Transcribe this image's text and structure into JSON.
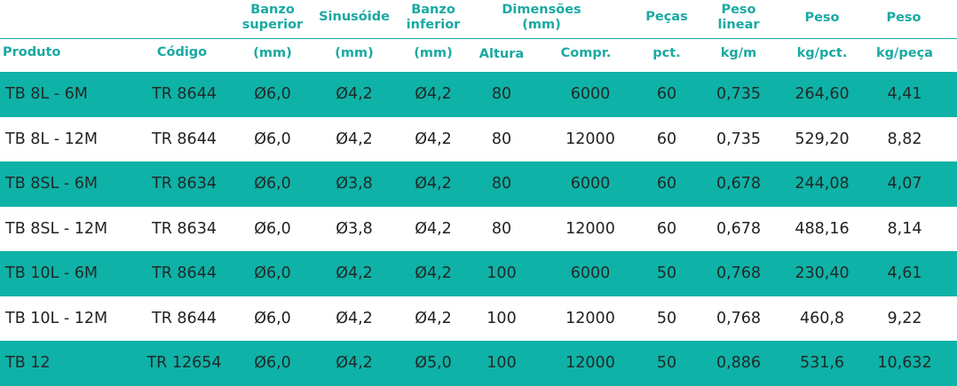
{
  "headers": {
    "banzo_superior": [
      "Banzo",
      "superior"
    ],
    "sinusoide": "Sinusóide",
    "banzo_inferior": [
      "Banzo",
      "inferior"
    ],
    "dimensoes": [
      "Dimensões",
      "(mm)"
    ],
    "pecas": "Peças",
    "peso_linear": [
      "Peso",
      "linear"
    ],
    "peso1": "Peso",
    "peso2": "Peso",
    "produto": "Produto",
    "codigo": "Código",
    "mm1": "(mm)",
    "mm2": "(mm)",
    "mm3": "(mm)",
    "altura": "Altura",
    "compr": "Compr.",
    "pct": "pct.",
    "kgm": "kg/m",
    "kgpct": "kg/pct.",
    "kgpeca": "kg/peça"
  },
  "rows": [
    {
      "produto": "TB 8L - 6M",
      "codigo": "TR 8644",
      "banzo_sup": "Ø6,0",
      "sinusoide": "Ø4,2",
      "banzo_inf": "Ø4,2",
      "altura": "80",
      "compr": "6000",
      "pecas": "60",
      "peso_linear": "0,735",
      "peso_pct": "264,60",
      "peso_peca": "4,41"
    },
    {
      "produto": "TB 8L - 12M",
      "codigo": "TR 8644",
      "banzo_sup": "Ø6,0",
      "sinusoide": "Ø4,2",
      "banzo_inf": "Ø4,2",
      "altura": "80",
      "compr": "12000",
      "pecas": "60",
      "peso_linear": "0,735",
      "peso_pct": "529,20",
      "peso_peca": "8,82"
    },
    {
      "produto": "TB 8SL - 6M",
      "codigo": "TR 8634",
      "banzo_sup": "Ø6,0",
      "sinusoide": "Ø3,8",
      "banzo_inf": "Ø4,2",
      "altura": "80",
      "compr": "6000",
      "pecas": "60",
      "peso_linear": "0,678",
      "peso_pct": "244,08",
      "peso_peca": "4,07"
    },
    {
      "produto": "TB 8SL - 12M",
      "codigo": "TR 8634",
      "banzo_sup": "Ø6,0",
      "sinusoide": "Ø3,8",
      "banzo_inf": "Ø4,2",
      "altura": "80",
      "compr": "12000",
      "pecas": "60",
      "peso_linear": "0,678",
      "peso_pct": "488,16",
      "peso_peca": "8,14"
    },
    {
      "produto": "TB 10L - 6M",
      "codigo": "TR 8644",
      "banzo_sup": "Ø6,0",
      "sinusoide": "Ø4,2",
      "banzo_inf": "Ø4,2",
      "altura": "100",
      "compr": "6000",
      "pecas": "50",
      "peso_linear": "0,768",
      "peso_pct": "230,40",
      "peso_peca": "4,61"
    },
    {
      "produto": "TB 10L - 12M",
      "codigo": "TR 8644",
      "banzo_sup": "Ø6,0",
      "sinusoide": "Ø4,2",
      "banzo_inf": "Ø4,2",
      "altura": "100",
      "compr": "12000",
      "pecas": "50",
      "peso_linear": "0,768",
      "peso_pct": "460,8",
      "peso_peca": "9,22"
    },
    {
      "produto": "TB 12",
      "codigo": "TR 12654",
      "banzo_sup": "Ø6,0",
      "sinusoide": "Ø4,2",
      "banzo_inf": "Ø5,0",
      "altura": "100",
      "compr": "12000",
      "pecas": "50",
      "peso_linear": "0,886",
      "peso_pct": "531,6",
      "peso_peca": "10,632"
    }
  ],
  "colors": {
    "accent": "#1aa9a2",
    "row_band": "#0fb2a6",
    "text": "#222222"
  }
}
